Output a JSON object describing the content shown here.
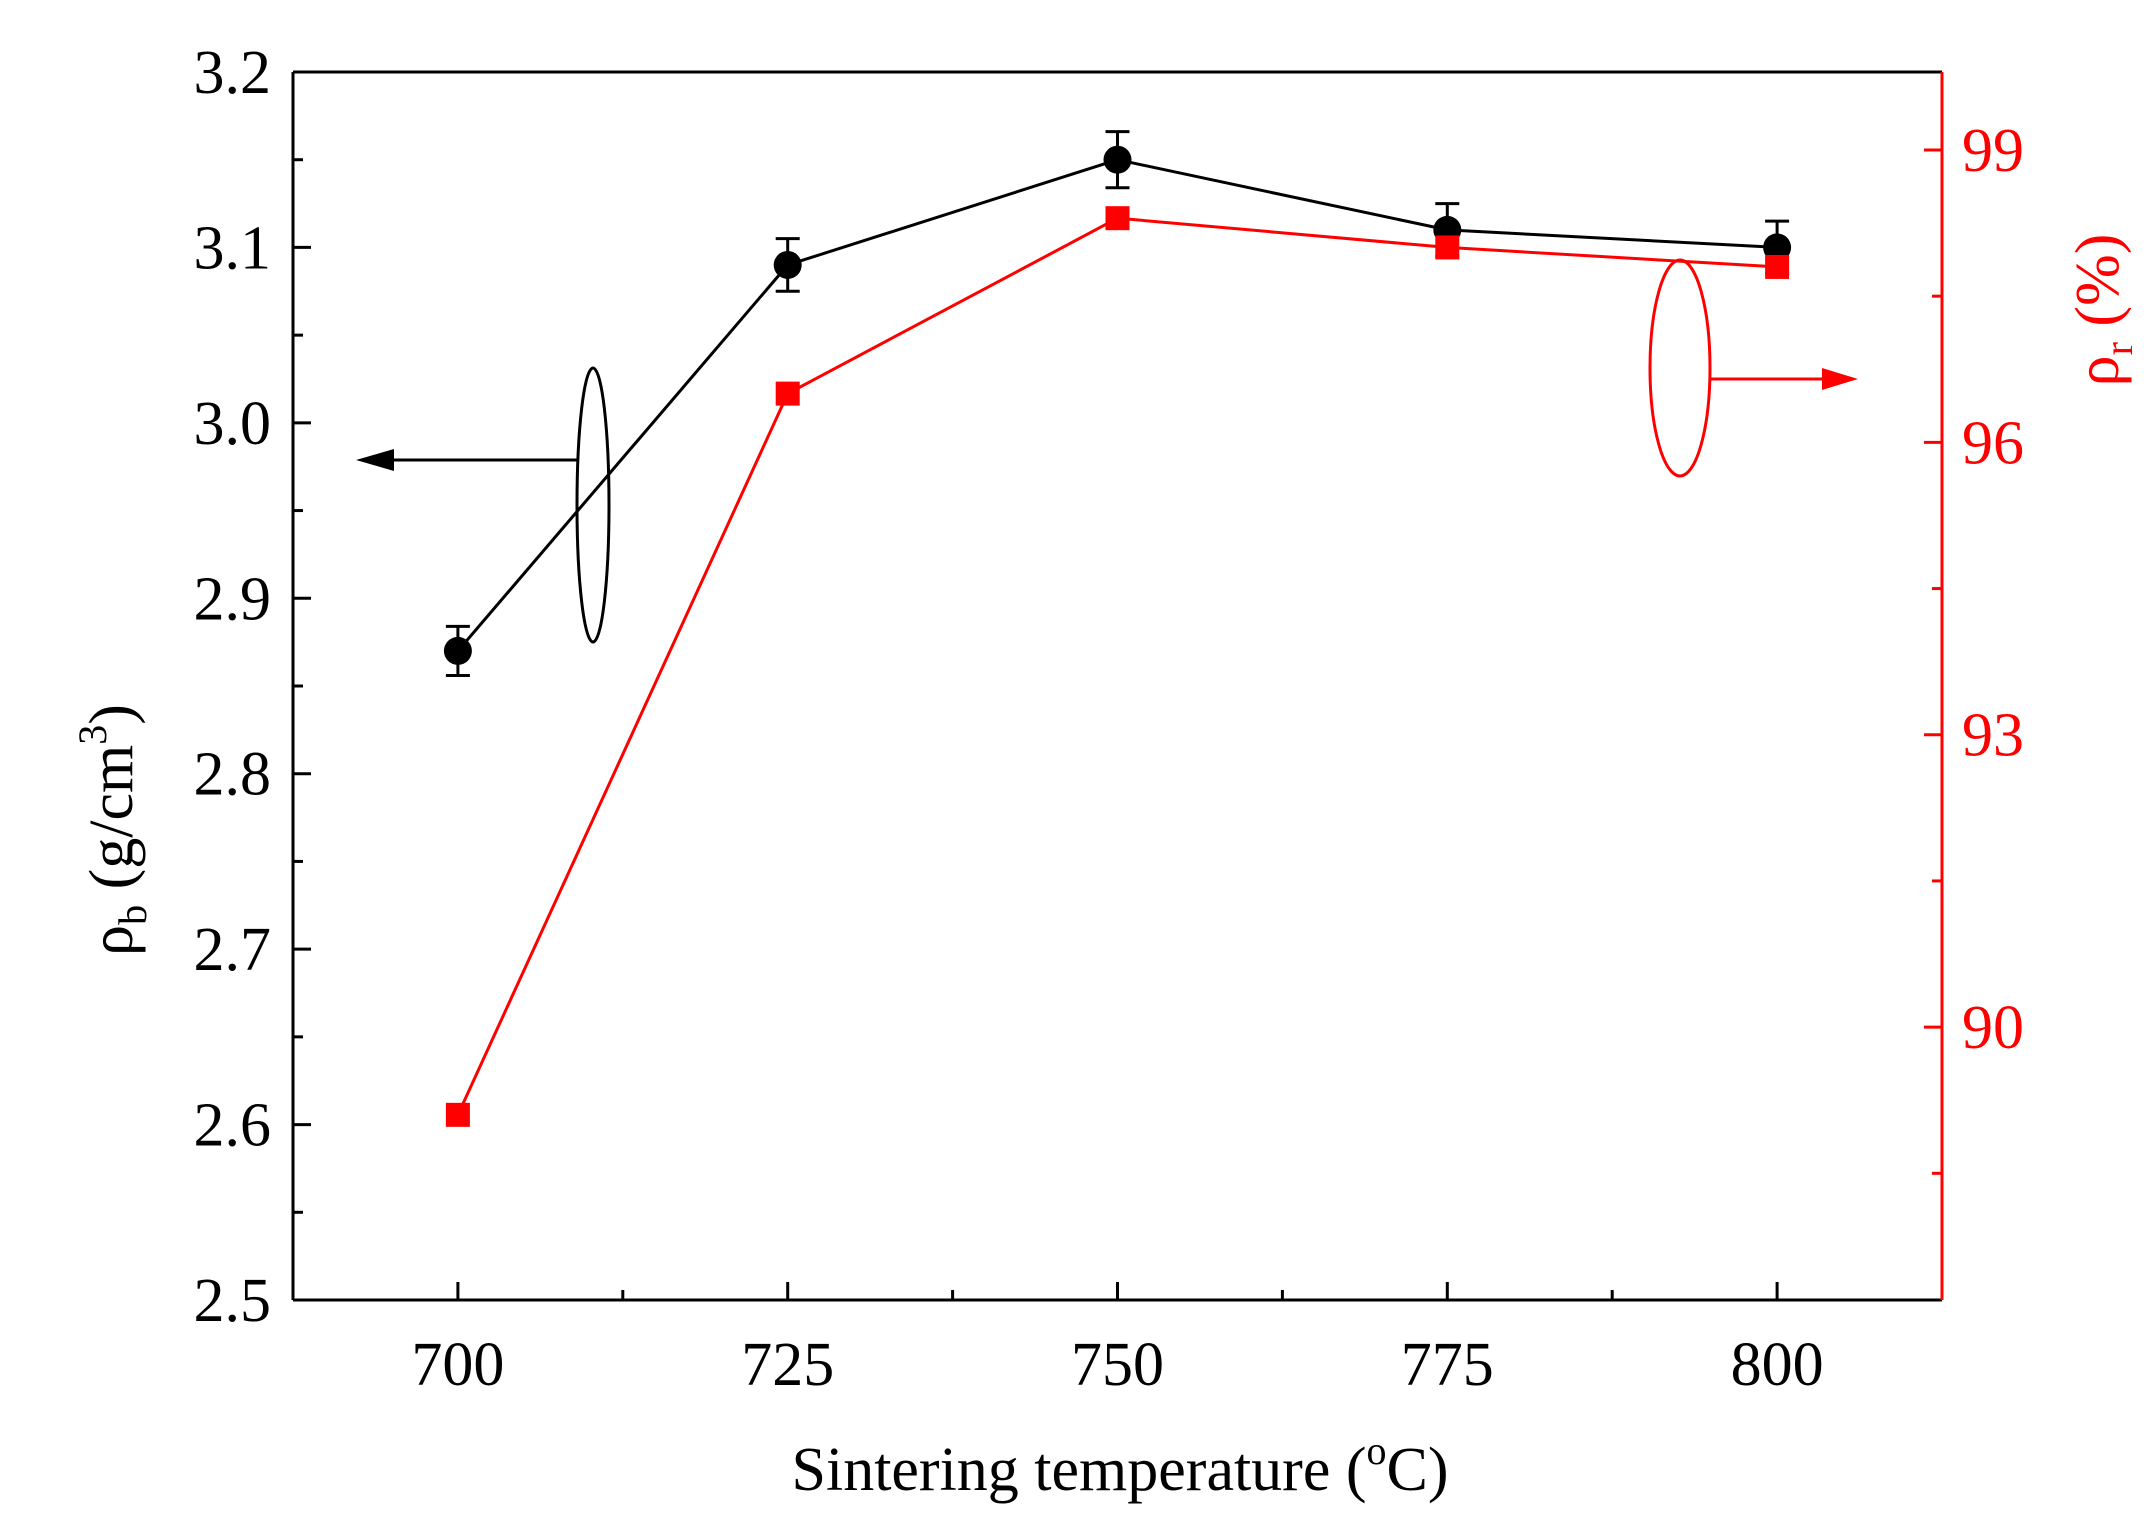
{
  "chart_data": {
    "type": "line",
    "dual_axis": true,
    "x": [
      700,
      725,
      750,
      775,
      800
    ],
    "xlim": [
      687.5,
      812.5
    ],
    "x_ticks": [
      700,
      725,
      750,
      775,
      800
    ],
    "x_tick_labels": [
      "700",
      "725",
      "750",
      "775",
      "800"
    ],
    "xlabel": {
      "main": "Sintering temperature (",
      "sup": "o",
      "end": "C)"
    },
    "ylabel_left": {
      "main": "ρ",
      "sub": "b",
      "mid": " (g/cm",
      "sup": "3",
      "end": ")"
    },
    "ylabel_right": {
      "main": "ρ",
      "sub": "r",
      "end": " (%)"
    },
    "ylim_left": [
      2.5,
      3.2
    ],
    "yticks_left": [
      "2.5",
      "2.6",
      "2.7",
      "2.8",
      "2.9",
      "3.0",
      "3.1",
      "3.2"
    ],
    "ylim_right": [
      87.2,
      99.8
    ],
    "yticks_right": [
      "90",
      "93",
      "96",
      "99"
    ],
    "series": [
      {
        "axis": "left",
        "color": "#000000",
        "marker": "circle",
        "values": [
          2.87,
          3.09,
          3.15,
          3.11,
          3.1
        ],
        "errors": [
          0.014,
          0.015,
          0.016,
          0.015,
          0.015
        ]
      },
      {
        "axis": "right",
        "color": "#ff0000",
        "marker": "square",
        "values": [
          89.1,
          96.5,
          98.3,
          98.0,
          97.8
        ]
      }
    ],
    "annotations": [
      {
        "type": "ellipse-arrow",
        "color": "#000000",
        "points_to": "left axis"
      },
      {
        "type": "ellipse-arrow",
        "color": "#ff0000",
        "points_to": "right axis"
      }
    ],
    "grid": false,
    "legend": "none"
  }
}
